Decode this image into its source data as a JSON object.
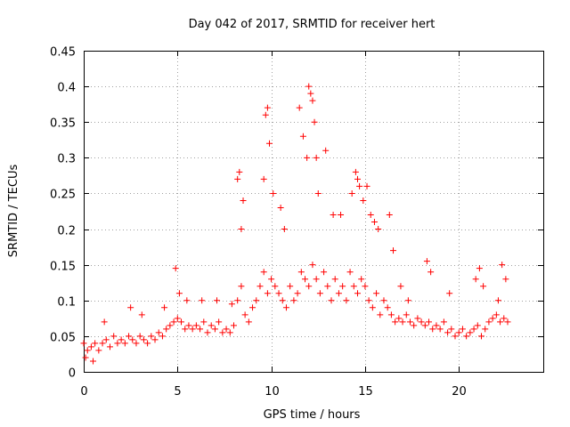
{
  "chart_data": {
    "type": "scatter",
    "title": "Day 042 of 2017, SRMTID for receiver hert",
    "xlabel": "GPS time / hours",
    "ylabel": "SRMTID / TECUs",
    "xlim": [
      0,
      24.5
    ],
    "ylim": [
      0,
      0.45
    ],
    "xticks": [
      0,
      5,
      10,
      15,
      20
    ],
    "xtick_labels": [
      "0",
      "5",
      "10",
      "15",
      "20"
    ],
    "yticks": [
      0,
      0.05,
      0.1,
      0.15,
      0.2,
      0.25,
      0.3,
      0.35,
      0.4,
      0.45
    ],
    "ytick_labels": [
      "0",
      "0.05",
      "0.1",
      "0.15",
      "0.2",
      "0.25",
      "0.3",
      "0.35",
      "0.4",
      "0.45"
    ],
    "grid": true,
    "marker": "+",
    "series": [
      {
        "name": "SRMTID",
        "color": "#ff0000",
        "x": [
          0.0,
          0.2,
          0.4,
          0.6,
          0.8,
          1.0,
          1.2,
          1.4,
          1.6,
          1.8,
          2.0,
          2.2,
          2.4,
          2.6,
          2.8,
          3.0,
          3.2,
          3.4,
          3.6,
          3.8,
          4.0,
          4.2,
          4.4,
          4.6,
          4.8,
          5.0,
          5.2,
          5.4,
          5.6,
          5.8,
          6.0,
          6.2,
          6.4,
          6.6,
          6.8,
          7.0,
          7.2,
          7.4,
          7.6,
          7.8,
          8.0,
          8.2,
          8.4,
          8.6,
          8.8,
          9.0,
          9.2,
          9.4,
          9.6,
          9.8,
          10.0,
          10.2,
          10.4,
          10.6,
          10.8,
          11.0,
          11.2,
          11.4,
          11.6,
          11.8,
          12.0,
          12.2,
          12.4,
          12.6,
          12.8,
          13.0,
          13.2,
          13.4,
          13.6,
          13.8,
          14.0,
          14.2,
          14.4,
          14.6,
          14.8,
          15.0,
          15.2,
          15.4,
          15.6,
          15.8,
          16.0,
          16.2,
          16.4,
          16.6,
          16.8,
          17.0,
          17.2,
          17.4,
          17.6,
          17.8,
          18.0,
          18.2,
          18.4,
          18.6,
          18.8,
          19.0,
          19.2,
          19.4,
          19.6,
          19.8,
          20.0,
          20.2,
          20.4,
          20.6,
          20.8,
          21.0,
          21.2,
          21.4,
          21.6,
          21.8,
          22.0,
          22.2,
          22.4,
          22.6,
          0.1,
          0.5,
          1.1,
          2.5,
          3.1,
          4.3,
          4.9,
          5.1,
          5.5,
          6.3,
          7.1,
          7.9,
          8.2,
          8.3,
          8.4,
          8.5,
          9.6,
          9.7,
          9.8,
          9.9,
          10.1,
          10.5,
          10.7,
          11.5,
          11.7,
          11.9,
          12.0,
          12.1,
          12.2,
          12.3,
          12.4,
          12.5,
          12.9,
          13.3,
          13.7,
          14.3,
          14.5,
          14.6,
          14.7,
          14.9,
          15.1,
          15.3,
          15.5,
          15.7,
          16.3,
          16.5,
          16.9,
          17.3,
          18.3,
          18.5,
          19.5,
          20.9,
          21.1,
          21.3,
          22.1,
          22.3,
          22.5
        ],
        "y": [
          0.04,
          0.03,
          0.035,
          0.04,
          0.03,
          0.04,
          0.045,
          0.035,
          0.05,
          0.04,
          0.045,
          0.04,
          0.05,
          0.045,
          0.04,
          0.05,
          0.045,
          0.04,
          0.05,
          0.045,
          0.055,
          0.05,
          0.06,
          0.065,
          0.07,
          0.075,
          0.07,
          0.06,
          0.065,
          0.06,
          0.065,
          0.06,
          0.07,
          0.055,
          0.065,
          0.06,
          0.07,
          0.055,
          0.06,
          0.055,
          0.065,
          0.1,
          0.12,
          0.08,
          0.07,
          0.09,
          0.1,
          0.12,
          0.14,
          0.11,
          0.13,
          0.12,
          0.11,
          0.1,
          0.09,
          0.12,
          0.1,
          0.11,
          0.14,
          0.13,
          0.12,
          0.15,
          0.13,
          0.11,
          0.14,
          0.12,
          0.1,
          0.13,
          0.11,
          0.12,
          0.1,
          0.14,
          0.12,
          0.11,
          0.13,
          0.12,
          0.1,
          0.09,
          0.11,
          0.08,
          0.1,
          0.09,
          0.08,
          0.07,
          0.075,
          0.07,
          0.08,
          0.07,
          0.065,
          0.075,
          0.07,
          0.065,
          0.07,
          0.06,
          0.065,
          0.06,
          0.07,
          0.055,
          0.06,
          0.05,
          0.055,
          0.06,
          0.05,
          0.055,
          0.06,
          0.065,
          0.05,
          0.06,
          0.07,
          0.075,
          0.08,
          0.07,
          0.075,
          0.07,
          0.02,
          0.015,
          0.07,
          0.09,
          0.08,
          0.09,
          0.145,
          0.11,
          0.1,
          0.1,
          0.1,
          0.095,
          0.27,
          0.28,
          0.2,
          0.24,
          0.27,
          0.36,
          0.37,
          0.32,
          0.25,
          0.23,
          0.2,
          0.37,
          0.33,
          0.3,
          0.4,
          0.39,
          0.38,
          0.35,
          0.3,
          0.25,
          0.31,
          0.22,
          0.22,
          0.25,
          0.28,
          0.27,
          0.26,
          0.24,
          0.26,
          0.22,
          0.21,
          0.2,
          0.22,
          0.17,
          0.12,
          0.1,
          0.155,
          0.14,
          0.11,
          0.13,
          0.145,
          0.12,
          0.1,
          0.15,
          0.13
        ]
      }
    ]
  }
}
